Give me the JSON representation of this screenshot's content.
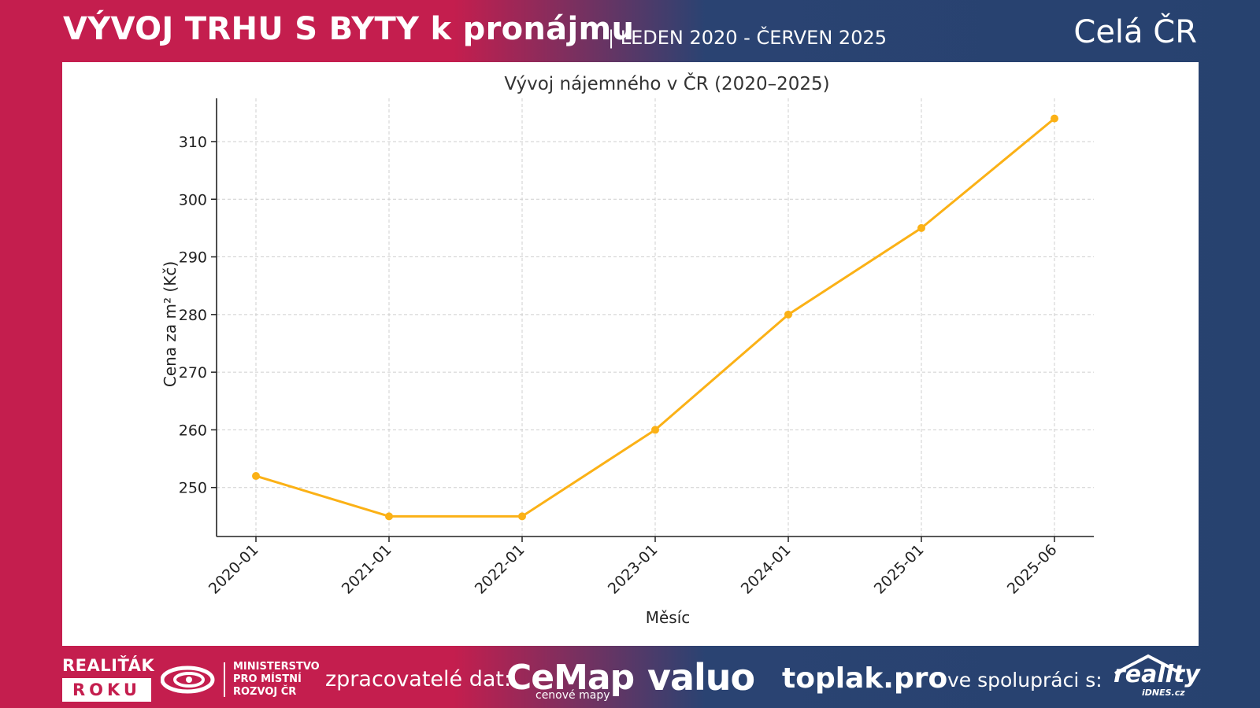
{
  "header": {
    "title": "VÝVOJ TRHU S BYTY k pronájmu",
    "period": "| LEDEN 2020 - ČERVEN 2025",
    "region": "Celá ČR"
  },
  "colors": {
    "left_band": "#c41e4e",
    "right_band": "#27426f",
    "line": "#fbb116"
  },
  "footer": {
    "realitak": "REALIŤÁK",
    "roku": "ROKU",
    "ministry": "MINISTERSTVO\nPRO MÍSTNÍ\nROZVOJ ČR",
    "processors_label": "zpracovatelé dat:",
    "cemap": "CeMap",
    "cemap_sub": "cenové mapy",
    "valuo": "valuo",
    "toplak": "toplak.pro",
    "coop_label": "ve spolupráci s:",
    "reality": "reality",
    "reality_sub": "iDNES.cz",
    "ministry_logo_icon": "mmr-swirl-icon",
    "reality_logo_icon": "house-roof-icon"
  },
  "chart_data": {
    "type": "line",
    "title": "Vývoj nájemného v ČR (2020–2025)",
    "xlabel": "Měsíc",
    "ylabel": "Cena za m² (Kč)",
    "categories": [
      "2020-01",
      "2021-01",
      "2022-01",
      "2023-01",
      "2024-01",
      "2025-01",
      "2025-06"
    ],
    "series": [
      {
        "values": [
          252,
          245,
          245,
          260,
          280,
          295,
          314
        ]
      }
    ],
    "ylim": [
      241.5,
      317.5
    ],
    "yticks": [
      250,
      260,
      270,
      280,
      290,
      300,
      310
    ],
    "grid": true,
    "markers": true
  }
}
